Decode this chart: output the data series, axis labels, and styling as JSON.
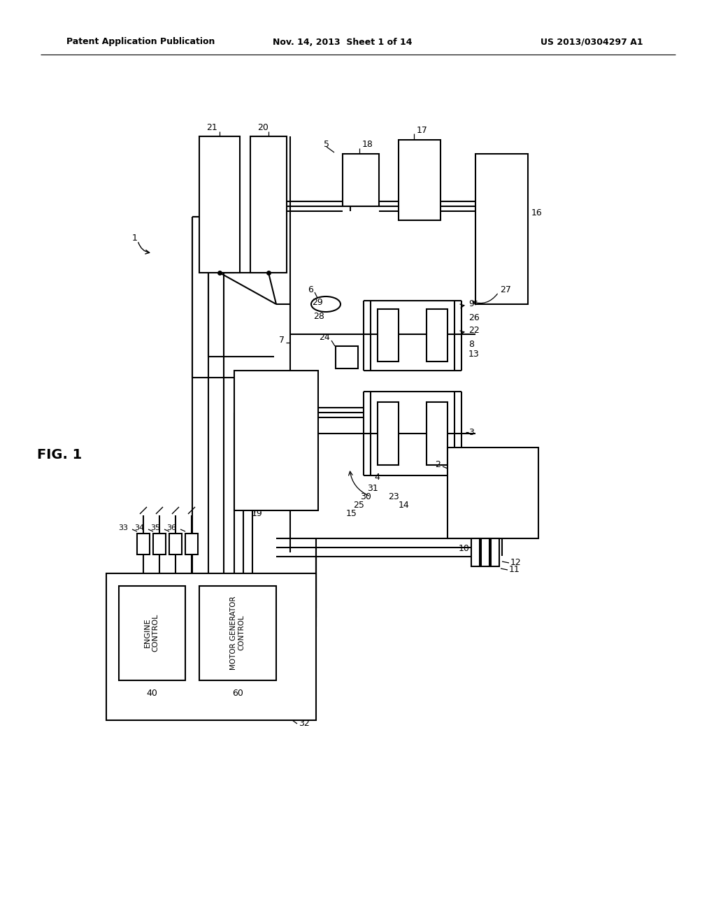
{
  "bg": "#ffffff",
  "header_left": "Patent Application Publication",
  "header_mid": "Nov. 14, 2013  Sheet 1 of 14",
  "header_right": "US 2013/0304297 A1"
}
